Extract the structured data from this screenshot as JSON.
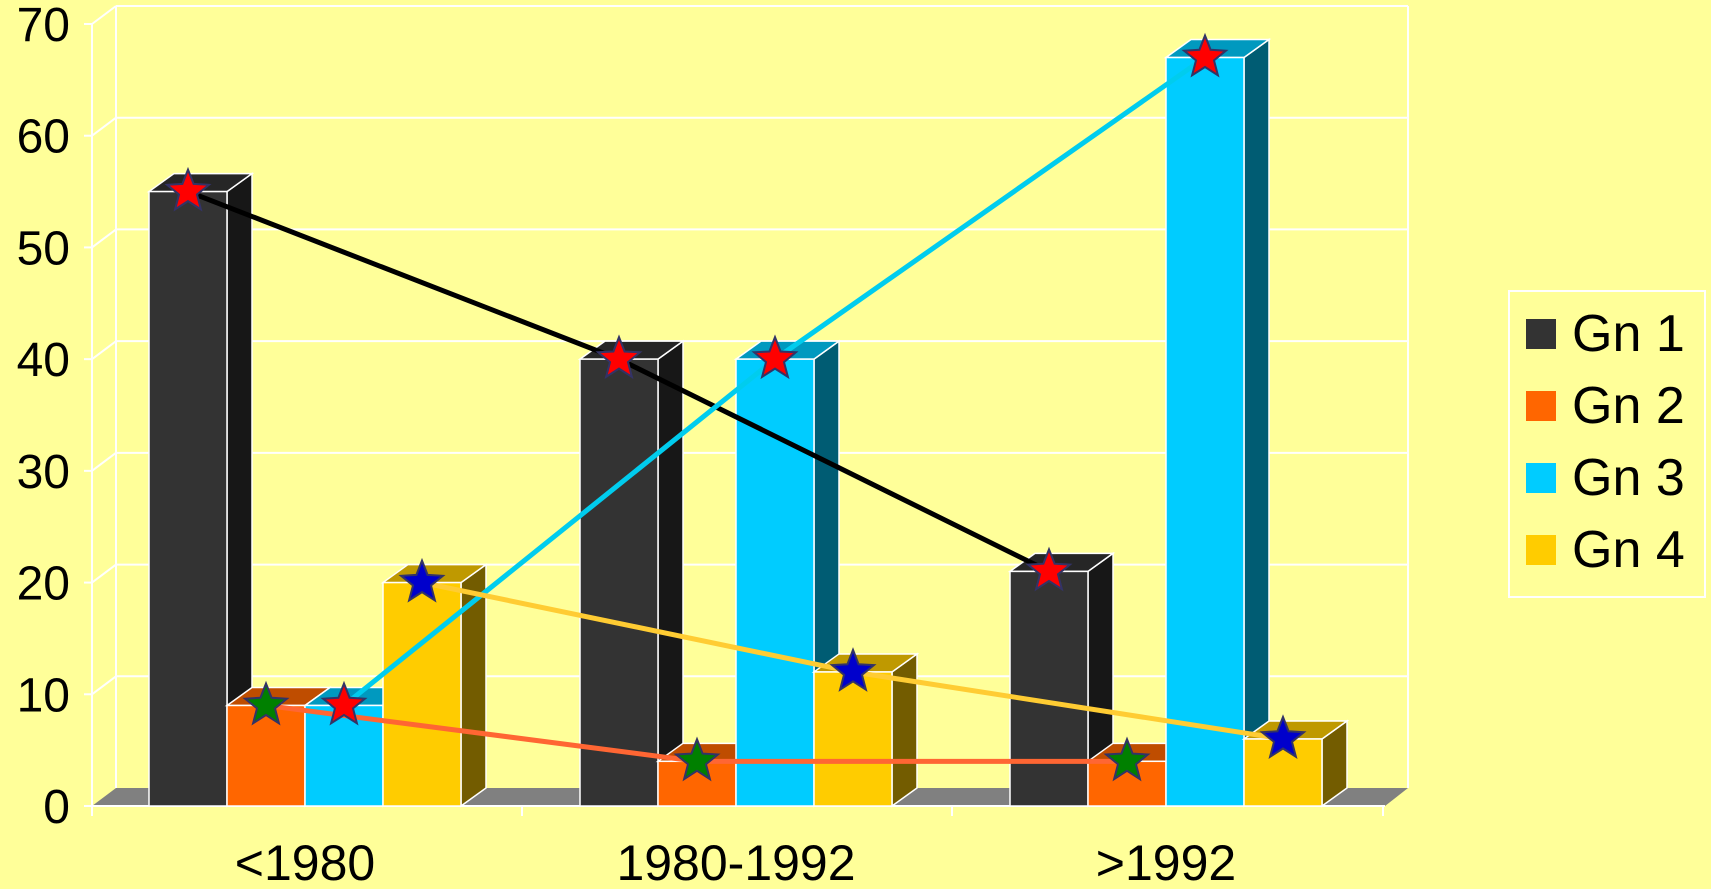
{
  "chart_data": {
    "type": "bar",
    "categories": [
      "<1980",
      "1980-1992",
      ">1992"
    ],
    "ylim": [
      0,
      70
    ],
    "y_ticks": [
      0,
      10,
      20,
      30,
      40,
      50,
      60,
      70
    ],
    "grid": true,
    "legend_position": "right",
    "series": [
      {
        "name": "Gn 1",
        "values": [
          55,
          40,
          21
        ],
        "color": "#333333",
        "star_color": "#FF0000",
        "line_color": "#000000"
      },
      {
        "name": "Gn 2",
        "values": [
          9,
          4,
          4
        ],
        "color": "#FF6600",
        "star_color": "#008000",
        "line_color": "#FF6633"
      },
      {
        "name": "Gn 3",
        "values": [
          9,
          40,
          67
        ],
        "color": "#00CCFF",
        "star_color": "#FF0000",
        "line_color": "#00CCEE"
      },
      {
        "name": "Gn 4",
        "values": [
          20,
          12,
          6
        ],
        "color": "#FFCC00",
        "star_color": "#0000CC",
        "line_color": "#FFCC33"
      }
    ]
  },
  "colors": {
    "background": "#FFFF99",
    "grid": "#FFFFFF",
    "floor": "#808080"
  }
}
